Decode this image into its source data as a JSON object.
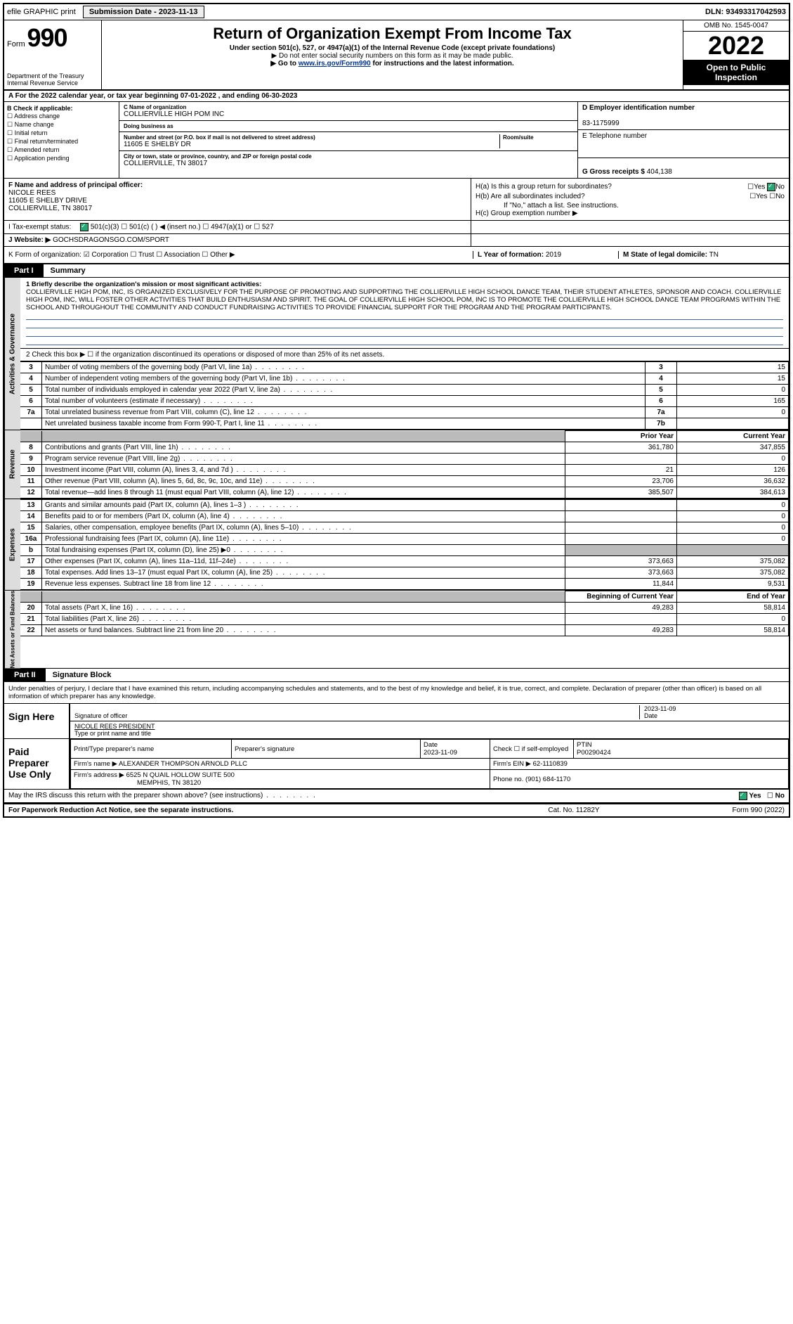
{
  "topbar": {
    "efile": "efile GRAPHIC print",
    "submission_btn": "Submission Date - 2023-11-13",
    "dln": "DLN: 93493317042593"
  },
  "header": {
    "form_prefix": "Form",
    "form_no": "990",
    "dept": "Department of the Treasury",
    "irs": "Internal Revenue Service",
    "title": "Return of Organization Exempt From Income Tax",
    "subtitle": "Under section 501(c), 527, or 4947(a)(1) of the Internal Revenue Code (except private foundations)",
    "note1": "▶ Do not enter social security numbers on this form as it may be made public.",
    "note2_pre": "▶ Go to ",
    "note2_link": "www.irs.gov/Form990",
    "note2_post": " for instructions and the latest information.",
    "omb": "OMB No. 1545-0047",
    "year": "2022",
    "open": "Open to Public Inspection"
  },
  "row_a": "A For the 2022 calendar year, or tax year beginning 07-01-2022   , and ending 06-30-2023",
  "col_b": {
    "label": "B Check if applicable:",
    "items": [
      "Address change",
      "Name change",
      "Initial return",
      "Final return/terminated",
      "Amended return",
      "Application pending"
    ]
  },
  "col_c": {
    "name_lbl": "C Name of organization",
    "name": "COLLIERVILLE HIGH POM INC",
    "dba_lbl": "Doing business as",
    "dba": "",
    "addr_lbl": "Number and street (or P.O. box if mail is not delivered to street address)",
    "addr": "11605 E SHELBY DR",
    "room_lbl": "Room/suite",
    "city_lbl": "City or town, state or province, country, and ZIP or foreign postal code",
    "city": "COLLIERVILLE, TN  38017"
  },
  "col_d": {
    "ein_lbl": "D Employer identification number",
    "ein": "83-1175999",
    "tel_lbl": "E Telephone number",
    "tel": "",
    "gross_lbl": "G Gross receipts $",
    "gross": "404,138"
  },
  "col_f": {
    "lbl": "F  Name and address of principal officer:",
    "name": "NICOLE REES",
    "addr1": "11605 E SHELBY DRIVE",
    "addr2": "COLLIERVILLE, TN  38017"
  },
  "col_h": {
    "ha": "H(a)  Is this a group return for subordinates?",
    "hb": "H(b)  Are all subordinates included?",
    "hb_note": "If \"No,\" attach a list. See instructions.",
    "hc": "H(c)  Group exemption number ▶"
  },
  "row_i": {
    "lbl": "I    Tax-exempt status:",
    "opts": "501(c)(3)      ☐  501(c) (  ) ◀ (insert no.)     ☐  4947(a)(1) or    ☐  527"
  },
  "row_j": {
    "lbl": "J   Website: ▶",
    "val": "GOCHSDRAGONSGO.COM/SPORT"
  },
  "row_k": {
    "k": "K Form of organization:   ☑  Corporation  ☐  Trust  ☐  Association  ☐  Other ▶",
    "l_lbl": "L Year of formation:",
    "l_val": "2019",
    "m_lbl": "M State of legal domicile:",
    "m_val": "TN"
  },
  "part1": {
    "label": "Part I",
    "title": "Summary",
    "side_ag": "Activities & Governance",
    "side_rev": "Revenue",
    "side_exp": "Expenses",
    "side_nab": "Net Assets or Fund Balances",
    "line1_lbl": "1   Briefly describe the organization's mission or most significant activities:",
    "mission": "COLLIERVILLE HIGH POM, INC, IS ORGANIZED EXCLUSIVELY FOR THE PURPOSE OF PROMOTING AND SUPPORTING THE COLLIERVILLE HIGH SCHOOL DANCE TEAM, THEIR STUDENT ATHLETES, SPONSOR AND COACH. COLLIERVILLE HIGH POM, INC, WILL FOSTER OTHER ACTIVITIES THAT BUILD ENTHUSIASM AND SPIRIT. THE GOAL OF COLLIERVILLE HIGH SCHOOL POM, INC IS TO PROMOTE THE COLLIERVILLE HIGH SCHOOL DANCE TEAM PROGRAMS WITHIN THE SCHOOL AND THROUGHOUT THE COMMUNITY AND CONDUCT FUNDRAISING ACTIVITIES TO PROVIDE FINANCIAL SUPPORT FOR THE PROGRAM AND THE PROGRAM PARTICIPANTS.",
    "line2": "2   Check this box ▶ ☐ if the organization discontinued its operations or disposed of more than 25% of its net assets.",
    "rows_ag": [
      {
        "n": "3",
        "d": "Number of voting members of the governing body (Part VI, line 1a)",
        "b": "3",
        "v": "15"
      },
      {
        "n": "4",
        "d": "Number of independent voting members of the governing body (Part VI, line 1b)",
        "b": "4",
        "v": "15"
      },
      {
        "n": "5",
        "d": "Total number of individuals employed in calendar year 2022 (Part V, line 2a)",
        "b": "5",
        "v": "0"
      },
      {
        "n": "6",
        "d": "Total number of volunteers (estimate if necessary)",
        "b": "6",
        "v": "165"
      },
      {
        "n": "7a",
        "d": "Total unrelated business revenue from Part VIII, column (C), line 12",
        "b": "7a",
        "v": "0"
      },
      {
        "n": "",
        "d": "Net unrelated business taxable income from Form 990-T, Part I, line 11",
        "b": "7b",
        "v": ""
      }
    ],
    "col_hdr_prior": "Prior Year",
    "col_hdr_curr": "Current Year",
    "rows_rev": [
      {
        "n": "8",
        "d": "Contributions and grants (Part VIII, line 1h)",
        "p": "361,780",
        "c": "347,855"
      },
      {
        "n": "9",
        "d": "Program service revenue (Part VIII, line 2g)",
        "p": "",
        "c": "0"
      },
      {
        "n": "10",
        "d": "Investment income (Part VIII, column (A), lines 3, 4, and 7d )",
        "p": "21",
        "c": "126"
      },
      {
        "n": "11",
        "d": "Other revenue (Part VIII, column (A), lines 5, 6d, 8c, 9c, 10c, and 11e)",
        "p": "23,706",
        "c": "36,632"
      },
      {
        "n": "12",
        "d": "Total revenue—add lines 8 through 11 (must equal Part VIII, column (A), line 12)",
        "p": "385,507",
        "c": "384,613"
      }
    ],
    "rows_exp": [
      {
        "n": "13",
        "d": "Grants and similar amounts paid (Part IX, column (A), lines 1–3 )",
        "p": "",
        "c": "0"
      },
      {
        "n": "14",
        "d": "Benefits paid to or for members (Part IX, column (A), line 4)",
        "p": "",
        "c": "0"
      },
      {
        "n": "15",
        "d": "Salaries, other compensation, employee benefits (Part IX, column (A), lines 5–10)",
        "p": "",
        "c": "0"
      },
      {
        "n": "16a",
        "d": "Professional fundraising fees (Part IX, column (A), line 11e)",
        "p": "",
        "c": "0"
      },
      {
        "n": "b",
        "d": "Total fundraising expenses (Part IX, column (D), line 25) ▶0",
        "p": "shade",
        "c": "shade"
      },
      {
        "n": "17",
        "d": "Other expenses (Part IX, column (A), lines 11a–11d, 11f–24e)",
        "p": "373,663",
        "c": "375,082"
      },
      {
        "n": "18",
        "d": "Total expenses. Add lines 13–17 (must equal Part IX, column (A), line 25)",
        "p": "373,663",
        "c": "375,082"
      },
      {
        "n": "19",
        "d": "Revenue less expenses. Subtract line 18 from line 12",
        "p": "11,844",
        "c": "9,531"
      }
    ],
    "col_hdr_beg": "Beginning of Current Year",
    "col_hdr_end": "End of Year",
    "rows_nab": [
      {
        "n": "20",
        "d": "Total assets (Part X, line 16)",
        "p": "49,283",
        "c": "58,814"
      },
      {
        "n": "21",
        "d": "Total liabilities (Part X, line 26)",
        "p": "",
        "c": "0"
      },
      {
        "n": "22",
        "d": "Net assets or fund balances. Subtract line 21 from line 20",
        "p": "49,283",
        "c": "58,814"
      }
    ]
  },
  "part2": {
    "label": "Part II",
    "title": "Signature Block",
    "declaration": "Under penalties of perjury, I declare that I have examined this return, including accompanying schedules and statements, and to the best of my knowledge and belief, it is true, correct, and complete. Declaration of preparer (other than officer) is based on all information of which preparer has any knowledge.",
    "sign_here": "Sign Here",
    "sig_officer": "Signature of officer",
    "sig_date": "2023-11-09",
    "date_lbl": "Date",
    "officer_name": "NICOLE REES PRESIDENT",
    "type_name": "Type or print name and title",
    "paid_prep": "Paid Preparer Use Only",
    "prep_name_lbl": "Print/Type preparer's name",
    "prep_sig_lbl": "Preparer's signature",
    "prep_date_lbl": "Date",
    "prep_date": "2023-11-09",
    "self_emp": "Check ☐ if self-employed",
    "ptin_lbl": "PTIN",
    "ptin": "P00290424",
    "firm_name_lbl": "Firm's name    ▶",
    "firm_name": "ALEXANDER THOMPSON ARNOLD PLLC",
    "firm_ein_lbl": "Firm's EIN ▶",
    "firm_ein": "62-1110839",
    "firm_addr_lbl": "Firm's address ▶",
    "firm_addr": "6525 N QUAIL HOLLOW SUITE 500",
    "firm_city": "MEMPHIS, TN  38120",
    "phone_lbl": "Phone no.",
    "phone": "(901) 684-1170",
    "discuss": "May the IRS discuss this return with the preparer shown above? (see instructions)",
    "yes": "Yes",
    "no": "No"
  },
  "footer": {
    "pra": "For Paperwork Reduction Act Notice, see the separate instructions.",
    "cat": "Cat. No. 11282Y",
    "form": "Form 990 (2022)"
  }
}
